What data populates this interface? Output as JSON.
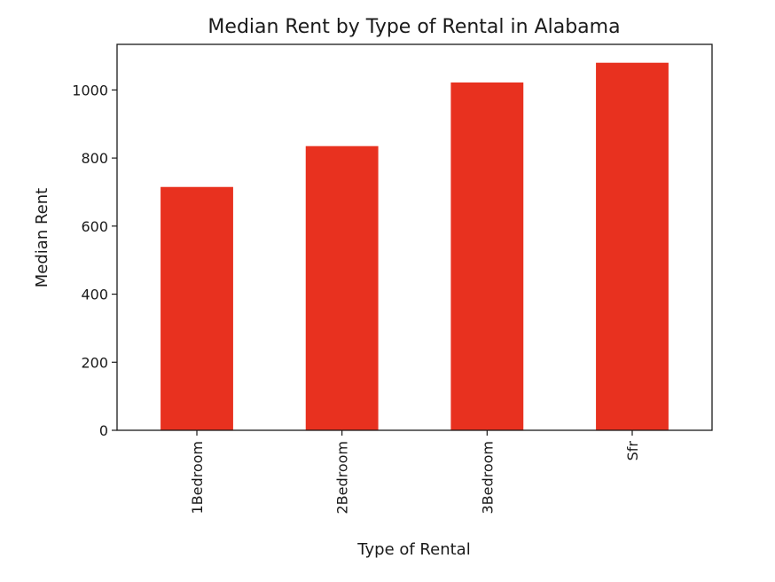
{
  "chart_data": {
    "type": "bar",
    "title": "Median Rent by Type of Rental in Alabama",
    "xlabel": "Type of Rental",
    "ylabel": "Median Rent",
    "categories": [
      "1Bedroom",
      "2Bedroom",
      "3Bedroom",
      "Sfr"
    ],
    "values": [
      715,
      835,
      1022,
      1080
    ],
    "ylim": [
      0,
      1134
    ],
    "yticks": [
      0,
      200,
      400,
      600,
      800,
      1000
    ],
    "grid": false,
    "legend": "none",
    "bar_color": "#e8311f"
  }
}
